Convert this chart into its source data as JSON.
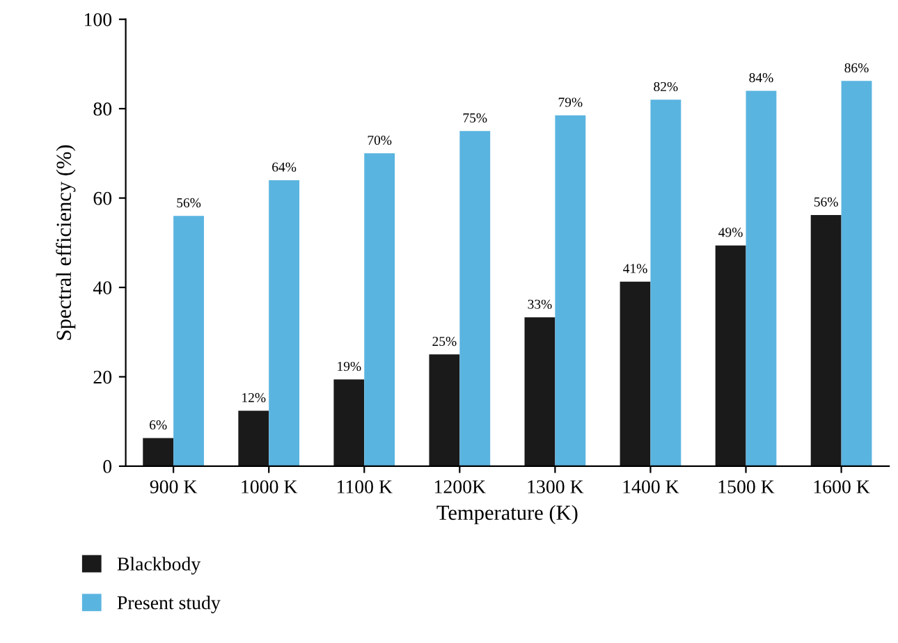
{
  "chart_data": {
    "type": "bar",
    "xlabel": "Temperature (K)",
    "ylabel": "Spectral efficiency (%)",
    "categories": [
      "900 K",
      "1000 K",
      "1100 K",
      "1200K",
      "1300 K",
      "1400 K",
      "1500 K",
      "1600 K"
    ],
    "series": [
      {
        "name": "Blackbody",
        "color": "#1a1a1a",
        "values": [
          6.3,
          12.4,
          19.4,
          25.0,
          33.3,
          41.3,
          49.4,
          56.2
        ],
        "value_labels": [
          "6%",
          "12%",
          "19%",
          "25%",
          "33%",
          "41%",
          "49%",
          "56%"
        ]
      },
      {
        "name": "Present study",
        "color": "#5ab4e0",
        "values": [
          56.0,
          64.0,
          70.0,
          75.0,
          78.5,
          82.0,
          84.0,
          86.2
        ],
        "value_labels": [
          "56%",
          "64%",
          "70%",
          "75%",
          "79%",
          "82%",
          "84%",
          "86%"
        ]
      }
    ],
    "ylim": [
      0,
      100
    ],
    "yticks": [
      0,
      20,
      40,
      60,
      80,
      100
    ],
    "grid": false,
    "legend": "bottom"
  }
}
